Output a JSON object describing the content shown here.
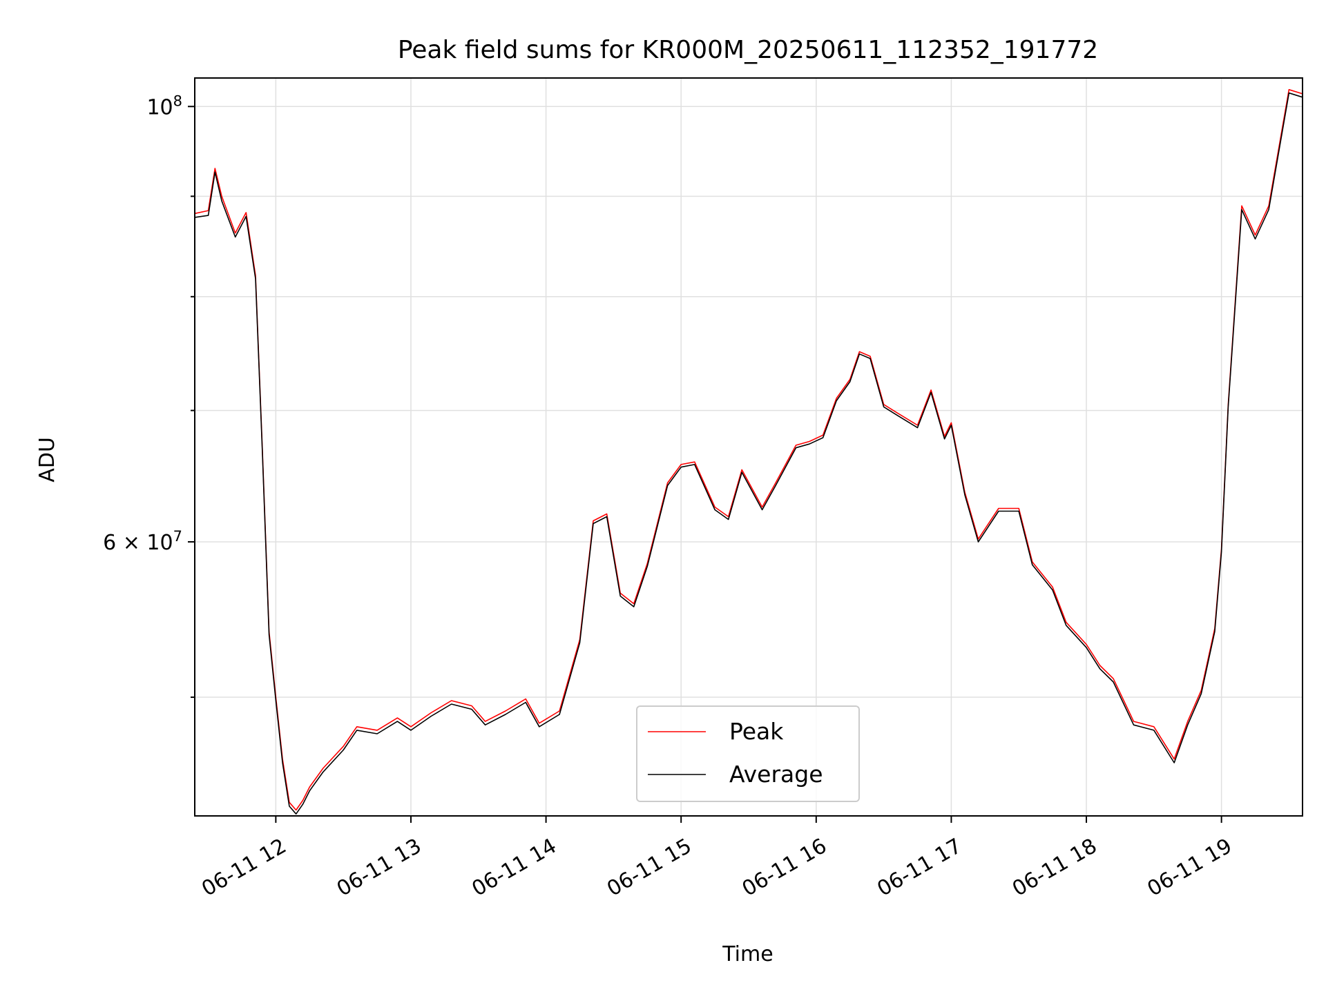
{
  "chart_data": {
    "type": "line",
    "title": "Peak field sums for KR000M_20250611_112352_191772",
    "xlabel": "Time",
    "ylabel": "ADU",
    "x_tick_labels": [
      "06-11 12",
      "06-11 13",
      "06-11 14",
      "06-11 15",
      "06-11 16",
      "06-11 17",
      "06-11 18",
      "06-11 19"
    ],
    "x_ticks_hours": [
      12,
      13,
      14,
      15,
      16,
      17,
      18,
      19
    ],
    "y_tick_major": [
      {
        "value": 100000000,
        "base": "10",
        "exp": "8"
      }
    ],
    "y_tick_mid": [
      {
        "value": 60000000,
        "mant": "6",
        "times": "×",
        "base": "10",
        "exp": "7"
      }
    ],
    "y_minor_ticks": [
      50000000,
      70000000,
      80000000,
      90000000
    ],
    "xlim_hours": [
      11.4,
      19.6
    ],
    "ylim": [
      43500000,
      103400000
    ],
    "y_scale": "log",
    "grid": true,
    "legend_position": "lower-center",
    "series": [
      {
        "name": "Peak",
        "color": "#ff0000",
        "x_hours": [
          11.4,
          11.5,
          11.55,
          11.6,
          11.7,
          11.78,
          11.85,
          11.9,
          11.95,
          12.0,
          12.05,
          12.1,
          12.15,
          12.2,
          12.25,
          12.35,
          12.5,
          12.6,
          12.75,
          12.9,
          13.0,
          13.15,
          13.3,
          13.45,
          13.55,
          13.7,
          13.85,
          13.95,
          14.1,
          14.25,
          14.35,
          14.45,
          14.55,
          14.65,
          14.75,
          14.9,
          15.0,
          15.1,
          15.25,
          15.35,
          15.45,
          15.6,
          15.7,
          15.85,
          15.95,
          16.05,
          16.15,
          16.25,
          16.32,
          16.4,
          16.5,
          16.6,
          16.75,
          16.85,
          16.95,
          17.0,
          17.1,
          17.2,
          17.35,
          17.5,
          17.6,
          17.75,
          17.85,
          18.0,
          18.1,
          18.2,
          18.35,
          18.5,
          18.65,
          18.75,
          18.85,
          18.95,
          19.0,
          19.05,
          19.15,
          19.25,
          19.35,
          19.45,
          19.5,
          19.6
        ],
        "values": [
          88200000,
          88500000,
          93000000,
          90000000,
          86200000,
          88300000,
          82000000,
          67000000,
          54000000,
          50000000,
          46500000,
          44200000,
          43800000,
          44300000,
          45000000,
          46000000,
          47200000,
          48300000,
          48100000,
          48800000,
          48300000,
          49100000,
          49800000,
          49500000,
          48600000,
          49200000,
          49900000,
          48500000,
          49200000,
          53500000,
          61500000,
          62000000,
          56500000,
          55800000,
          58500000,
          64300000,
          65700000,
          65900000,
          62500000,
          61800000,
          65300000,
          62500000,
          64300000,
          67200000,
          67500000,
          68000000,
          71000000,
          72600000,
          75000000,
          74600000,
          70500000,
          69800000,
          68800000,
          71700000,
          67900000,
          69000000,
          63600000,
          60200000,
          62400000,
          62400000,
          58600000,
          56900000,
          54600000,
          53200000,
          51900000,
          51100000,
          48600000,
          48300000,
          46500000,
          48600000,
          50400000,
          54200000,
          59500000,
          70500000,
          89000000,
          86000000,
          89000000,
          97500000,
          102000000,
          101500000
        ]
      },
      {
        "name": "Average",
        "color": "#000000",
        "x_hours": [
          11.4,
          11.5,
          11.55,
          11.6,
          11.7,
          11.78,
          11.85,
          11.9,
          11.95,
          12.0,
          12.05,
          12.1,
          12.15,
          12.2,
          12.25,
          12.35,
          12.5,
          12.6,
          12.75,
          12.9,
          13.0,
          13.15,
          13.3,
          13.45,
          13.55,
          13.7,
          13.85,
          13.95,
          14.1,
          14.25,
          14.35,
          14.45,
          14.55,
          14.65,
          14.75,
          14.9,
          15.0,
          15.1,
          15.25,
          15.35,
          15.45,
          15.6,
          15.7,
          15.85,
          15.95,
          16.05,
          16.15,
          16.25,
          16.32,
          16.4,
          16.5,
          16.6,
          16.75,
          16.85,
          16.95,
          17.0,
          17.1,
          17.2,
          17.35,
          17.5,
          17.6,
          17.75,
          17.85,
          18.0,
          18.1,
          18.2,
          18.35,
          18.5,
          18.65,
          18.75,
          18.85,
          18.95,
          19.0,
          19.05,
          19.15,
          19.25,
          19.35,
          19.45,
          19.5,
          19.6
        ],
        "values": [
          87800000,
          88000000,
          92600000,
          89500000,
          85800000,
          87900000,
          81700000,
          66800000,
          53800000,
          49800000,
          46300000,
          44000000,
          43600000,
          44100000,
          44800000,
          45800000,
          47000000,
          48100000,
          47900000,
          48600000,
          48100000,
          48900000,
          49600000,
          49300000,
          48400000,
          49000000,
          49700000,
          48300000,
          49000000,
          53300000,
          61300000,
          61800000,
          56300000,
          55600000,
          58300000,
          64100000,
          65500000,
          65700000,
          62300000,
          61600000,
          65100000,
          62300000,
          64100000,
          67000000,
          67300000,
          67800000,
          70800000,
          72400000,
          74800000,
          74400000,
          70300000,
          69600000,
          68600000,
          71500000,
          67700000,
          68800000,
          63400000,
          60000000,
          62200000,
          62200000,
          58400000,
          56700000,
          54400000,
          53000000,
          51700000,
          50900000,
          48400000,
          48100000,
          46300000,
          48400000,
          50200000,
          54000000,
          59300000,
          70300000,
          88600000,
          85600000,
          88600000,
          97100000,
          101600000,
          101100000
        ]
      }
    ]
  }
}
